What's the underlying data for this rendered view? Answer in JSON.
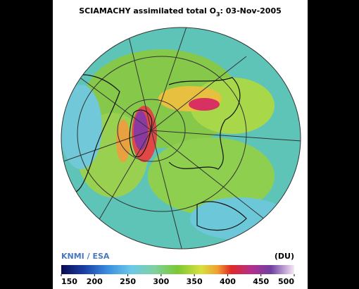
{
  "header": {
    "title_main": "SCIAMACHY assimilated total O",
    "title_sub": "3",
    "title_tail": ": 03-Nov-2005"
  },
  "credit": "KNMI / ESA",
  "colorbar": {
    "unit": "(DU)",
    "lim": [
      150,
      500
    ],
    "ticks": [
      150,
      200,
      250,
      300,
      350,
      400,
      450,
      500
    ]
  }
}
